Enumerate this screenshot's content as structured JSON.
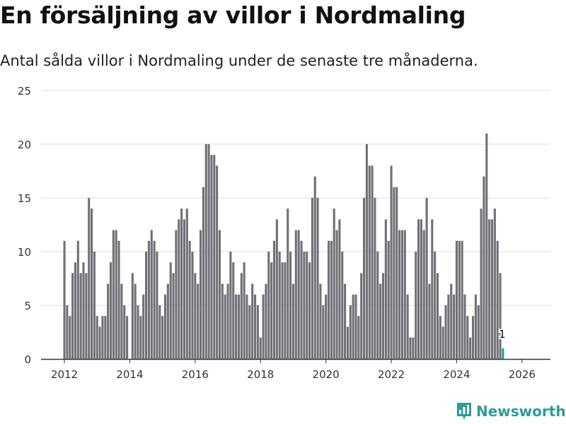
{
  "title": "En försäljning av villor i Nordmaling",
  "subtitle": "Antal sålda villor i Nordmaling under de senaste tre månaderna.",
  "brand": "Newsworthy",
  "colors": {
    "bar": "#717078",
    "highlight": "#2a9d96",
    "grid": "#dddddd",
    "axis": "#333333",
    "brand": "#2f9c98"
  },
  "chart_data": {
    "type": "bar",
    "title": "En försäljning av villor i Nordmaling",
    "subtitle": "Antal sålda villor i Nordmaling under de senaste tre månaderna.",
    "xlabel": "",
    "ylabel": "",
    "ylim": [
      0,
      25
    ],
    "yticks": [
      0,
      5,
      10,
      15,
      20,
      25
    ],
    "x_start_year": 2012,
    "x_start_month": 1,
    "xticks": [
      2012,
      2014,
      2016,
      2018,
      2020,
      2022,
      2024,
      2026
    ],
    "grid": true,
    "highlight_label": "1",
    "values": [
      11,
      5,
      4,
      8,
      9,
      11,
      8,
      9,
      8,
      15,
      14,
      10,
      4,
      3,
      4,
      4,
      7,
      9,
      12,
      12,
      11,
      7,
      5,
      4,
      0,
      8,
      7,
      5,
      4,
      6,
      10,
      11,
      12,
      11,
      10,
      5,
      4,
      6,
      7,
      9,
      8,
      12,
      13,
      14,
      13,
      14,
      11,
      10,
      8,
      7,
      12,
      16,
      20,
      20,
      19,
      19,
      18,
      12,
      7,
      6,
      7,
      10,
      9,
      6,
      6,
      8,
      9,
      6,
      5,
      7,
      6,
      5,
      2,
      6,
      7,
      10,
      9,
      11,
      13,
      10,
      9,
      9,
      14,
      10,
      7,
      12,
      12,
      11,
      10,
      10,
      9,
      15,
      17,
      15,
      7,
      5,
      6,
      11,
      11,
      14,
      12,
      13,
      10,
      7,
      3,
      5,
      6,
      6,
      4,
      8,
      15,
      20,
      18,
      18,
      15,
      10,
      7,
      8,
      13,
      11,
      18,
      16,
      16,
      12,
      12,
      12,
      6,
      2,
      2,
      10,
      13,
      13,
      12,
      15,
      7,
      13,
      10,
      8,
      4,
      3,
      5,
      6,
      7,
      6,
      11,
      11,
      11,
      6,
      4,
      2,
      4,
      6,
      5,
      14,
      17,
      21,
      13,
      13,
      14,
      11,
      8,
      1
    ]
  }
}
